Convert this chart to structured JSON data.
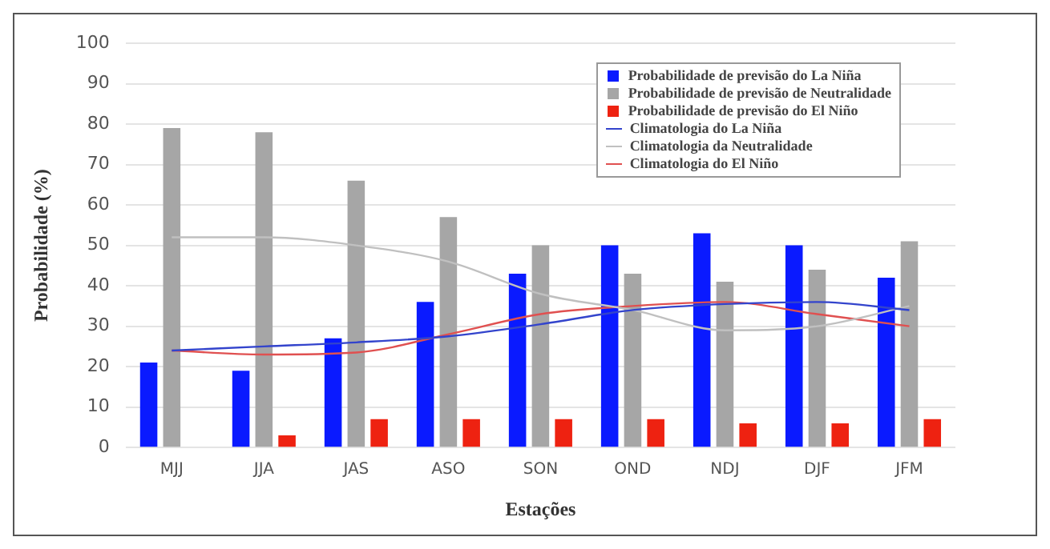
{
  "chart_data": {
    "type": "bar",
    "xlabel": "Estações",
    "ylabel": "Probabilidade (%)",
    "categories": [
      "MJJ",
      "JJA",
      "JAS",
      "ASO",
      "SON",
      "OND",
      "NDJ",
      "DJF",
      "JFM"
    ],
    "series": [
      {
        "name": "Probabilidade de previsão do La Niña",
        "color": "#0a1aff",
        "values": [
          21,
          19,
          27,
          36,
          43,
          50,
          53,
          50,
          42
        ]
      },
      {
        "name": "Probabilidade de previsão de Neutralidade",
        "color": "#a6a6a6",
        "values": [
          79,
          78,
          66,
          57,
          50,
          43,
          41,
          44,
          51
        ]
      },
      {
        "name": "Probabilidade de previsão do El Niño",
        "color": "#ee2211",
        "values": [
          0,
          3,
          7,
          7,
          7,
          7,
          6,
          6,
          7
        ]
      },
      {
        "name": "Climatologia do La Niña",
        "type": "line",
        "color": "#3344cc",
        "values": [
          24,
          25,
          26,
          27.5,
          30.5,
          34,
          35.5,
          36,
          34
        ]
      },
      {
        "name": "Climatologia da Neutralidade",
        "type": "line",
        "color": "#c0c0c0",
        "values": [
          52,
          52,
          50,
          46,
          38,
          34,
          29,
          30,
          35
        ]
      },
      {
        "name": "Climatologia do El Niño",
        "type": "line",
        "color": "#e05050",
        "values": [
          24,
          23,
          23.5,
          28,
          33,
          35,
          36,
          33,
          30
        ]
      }
    ],
    "ylim": [
      0,
      100
    ],
    "yticks": [
      0,
      10,
      20,
      30,
      40,
      50,
      60,
      70,
      80,
      90,
      100
    ],
    "grid": "y",
    "legend": "top right"
  }
}
